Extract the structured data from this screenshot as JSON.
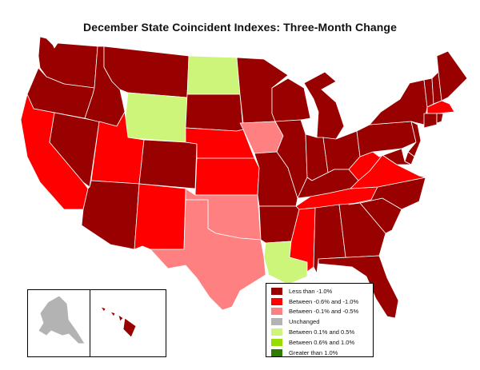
{
  "title": "December State Coincident Indexes: Three-Month Change",
  "colors": {
    "lt_neg1": "#990000",
    "neg06_neg1": "#ff0000",
    "neg01_neg05": "#ff8080",
    "unchanged": "#b3b3b3",
    "pos01_05": "#ccf57a",
    "pos06_10": "#99dd00",
    "gt_1": "#2e7d00"
  },
  "legend": [
    {
      "key": "lt_neg1",
      "label": "Less than -1.0%"
    },
    {
      "key": "neg06_neg1",
      "label": "Between -0.6% and -1.0%"
    },
    {
      "key": "neg01_neg05",
      "label": "Between -0.1% and -0.5%"
    },
    {
      "key": "unchanged",
      "label": "Unchanged"
    },
    {
      "key": "pos01_05",
      "label": "Between 0.1% and 0.5%"
    },
    {
      "key": "pos06_10",
      "label": "Between 0.6% and 1.0%"
    },
    {
      "key": "gt_1",
      "label": "Greater than 1.0%"
    }
  ],
  "states": {
    "WA": "lt_neg1",
    "OR": "lt_neg1",
    "CA": "neg06_neg1",
    "NV": "lt_neg1",
    "ID": "lt_neg1",
    "MT": "lt_neg1",
    "WY": "pos01_05",
    "UT": "neg06_neg1",
    "AZ": "lt_neg1",
    "CO": "lt_neg1",
    "NM": "neg06_neg1",
    "ND": "pos01_05",
    "SD": "lt_neg1",
    "NE": "neg06_neg1",
    "KS": "neg06_neg1",
    "OK": "neg01_neg05",
    "TX": "neg01_neg05",
    "MN": "lt_neg1",
    "IA": "neg01_neg05",
    "MO": "lt_neg1",
    "AR": "lt_neg1",
    "LA": "pos01_05",
    "WI": "lt_neg1",
    "IL": "lt_neg1",
    "MI": "lt_neg1",
    "IN": "lt_neg1",
    "OH": "lt_neg1",
    "KY": "lt_neg1",
    "TN": "neg06_neg1",
    "MS": "neg06_neg1",
    "AL": "lt_neg1",
    "GA": "lt_neg1",
    "FL": "lt_neg1",
    "SC": "lt_neg1",
    "NC": "lt_neg1",
    "VA": "neg06_neg1",
    "WV": "neg06_neg1",
    "PA": "lt_neg1",
    "NY": "lt_neg1",
    "VT": "lt_neg1",
    "NH": "lt_neg1",
    "ME": "lt_neg1",
    "MA": "neg06_neg1",
    "CT": "lt_neg1",
    "RI": "lt_neg1",
    "NJ": "lt_neg1",
    "DE": "lt_neg1",
    "MD": "lt_neg1",
    "AK": "unchanged",
    "HI": "lt_neg1"
  }
}
